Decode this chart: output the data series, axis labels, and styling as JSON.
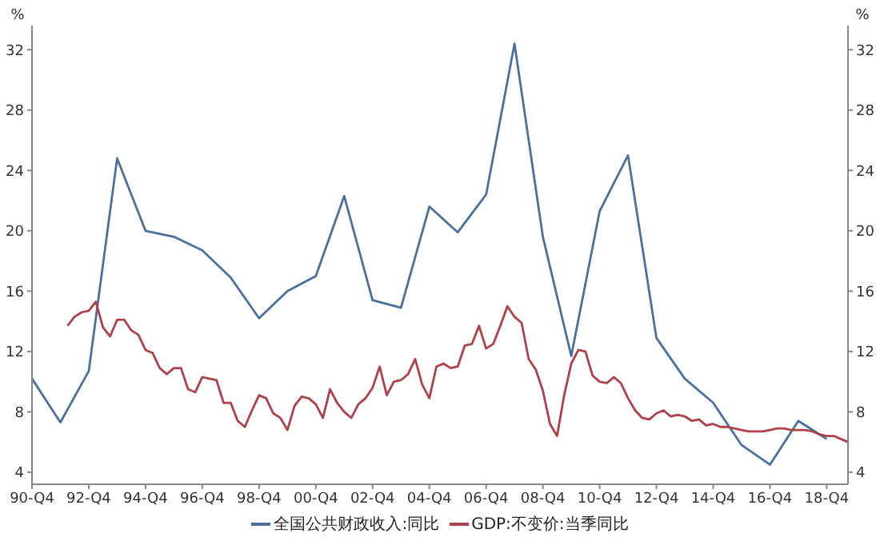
{
  "chart_data": {
    "type": "line",
    "ylabel": "%",
    "y2label": "%",
    "marker": "none",
    "grid": false,
    "legend": "bottom",
    "categories": [
      "90-Q4",
      null,
      null,
      null,
      null,
      null,
      null,
      null,
      "92-Q4",
      null,
      null,
      null,
      null,
      null,
      null,
      null,
      "94-Q4",
      null,
      null,
      null,
      null,
      null,
      null,
      null,
      "96-Q4",
      null,
      null,
      null,
      null,
      null,
      null,
      null,
      "98-Q4",
      null,
      null,
      null,
      null,
      null,
      null,
      null,
      "00-Q4",
      null,
      null,
      null,
      null,
      null,
      null,
      null,
      "02-Q4",
      null,
      null,
      null,
      null,
      null,
      null,
      null,
      "04-Q4",
      null,
      null,
      null,
      null,
      null,
      null,
      null,
      "06-Q4",
      null,
      null,
      null,
      null,
      null,
      null,
      null,
      "08-Q4",
      null,
      null,
      null,
      null,
      null,
      null,
      null,
      "10-Q4",
      null,
      null,
      null,
      null,
      null,
      null,
      null,
      "12-Q4",
      null,
      null,
      null,
      null,
      null,
      null,
      null,
      "14-Q4",
      null,
      null,
      null,
      null,
      null,
      null,
      null,
      "16-Q4",
      null,
      null,
      null,
      null,
      null,
      null,
      null,
      "18-Q4",
      null,
      null,
      null
    ],
    "ylim": [
      3.2,
      33.6
    ],
    "yticks": [
      4,
      8,
      12,
      16,
      20,
      24,
      28,
      32
    ],
    "y2lim": [
      3.2,
      33.6
    ],
    "y2ticks": [
      4,
      8,
      12,
      16,
      20,
      24,
      28,
      32
    ],
    "series": [
      {
        "name": "全国公共财政收入:同比",
        "color": "#4a70a0",
        "values": [
          10.2,
          null,
          null,
          null,
          7.3,
          null,
          null,
          null,
          10.7,
          null,
          null,
          null,
          24.8,
          null,
          null,
          null,
          20.0,
          null,
          null,
          null,
          19.6,
          null,
          null,
          null,
          18.7,
          null,
          null,
          null,
          16.9,
          null,
          null,
          null,
          14.2,
          null,
          null,
          null,
          16.0,
          null,
          null,
          null,
          17.0,
          null,
          null,
          null,
          22.3,
          null,
          null,
          null,
          15.4,
          null,
          null,
          null,
          14.9,
          null,
          null,
          null,
          21.6,
          null,
          null,
          null,
          19.9,
          null,
          null,
          null,
          22.4,
          null,
          null,
          null,
          32.4,
          null,
          null,
          null,
          19.6,
          null,
          null,
          null,
          11.7,
          null,
          null,
          null,
          21.3,
          null,
          null,
          null,
          25.0,
          null,
          null,
          null,
          12.9,
          null,
          null,
          null,
          10.2,
          null,
          null,
          null,
          8.6,
          null,
          null,
          null,
          5.8,
          null,
          null,
          null,
          4.5,
          null,
          null,
          null,
          7.4,
          null,
          null,
          null,
          6.2,
          null,
          null,
          null
        ]
      },
      {
        "name": "GDP:不变价:当季同比",
        "color": "#b0404a",
        "values": [
          null,
          null,
          null,
          null,
          null,
          13.7,
          14.3,
          14.6,
          14.7,
          15.3,
          13.6,
          13.0,
          14.1,
          14.1,
          13.4,
          13.1,
          12.1,
          11.9,
          10.9,
          10.5,
          10.9,
          10.9,
          9.5,
          9.3,
          10.3,
          10.2,
          10.1,
          8.6,
          8.6,
          7.4,
          7.0,
          8.1,
          9.1,
          8.9,
          7.9,
          7.6,
          6.8,
          8.4,
          9.0,
          8.9,
          8.5,
          7.6,
          9.5,
          8.6,
          8.0,
          7.6,
          8.5,
          8.9,
          9.6,
          11.0,
          9.1,
          10.0,
          10.1,
          10.5,
          11.5,
          9.8,
          8.9,
          11.0,
          11.2,
          10.9,
          11.0,
          12.4,
          12.5,
          13.7,
          12.2,
          12.5,
          13.7,
          15.0,
          14.3,
          13.9,
          11.5,
          10.8,
          9.4,
          7.2,
          6.4,
          9.1,
          11.2,
          12.1,
          12.0,
          10.4,
          10.0,
          9.9,
          10.3,
          9.9,
          8.9,
          8.1,
          7.6,
          7.5,
          7.9,
          8.1,
          7.7,
          7.8,
          7.7,
          7.4,
          7.5,
          7.1,
          7.2,
          7.0,
          7.0,
          6.9,
          6.8,
          6.7,
          6.7,
          6.7,
          6.8,
          6.9,
          6.9,
          6.8,
          6.8,
          6.8,
          6.7,
          6.5,
          6.4,
          6.4,
          6.2,
          6.0
        ]
      }
    ]
  }
}
